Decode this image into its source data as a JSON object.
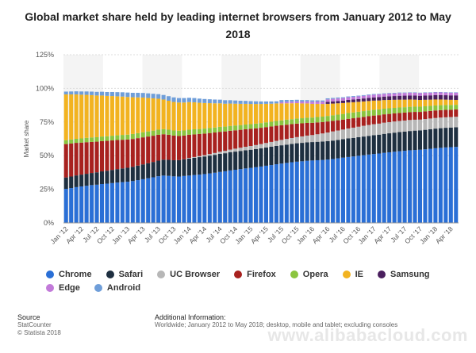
{
  "chart_data": {
    "type": "bar",
    "stacked": true,
    "title": "Global market share held by leading internet browsers from January 2012 to May 2018",
    "ylabel": "Market share",
    "xlabel": "",
    "ylim": [
      0,
      125
    ],
    "yticks": [
      "0%",
      "25%",
      "50%",
      "75%",
      "100%",
      "125%"
    ],
    "grid": true,
    "legend_position": "bottom",
    "x_tick_labels": [
      "Jan '12",
      "Apr '12",
      "Jul '12",
      "Oct '12",
      "Jan '13",
      "Apr '13",
      "Jul '13",
      "Oct '13",
      "Jan '14",
      "Apr '14",
      "Jul '14",
      "Oct '14",
      "Jan '15",
      "Apr '15",
      "Jul '15",
      "Oct '15",
      "Jan '16",
      "Apr '16",
      "Jul '16",
      "Oct '16",
      "Jan '17",
      "Apr '17",
      "Jul '17",
      "Oct '17",
      "Jan '18",
      "Apr '18"
    ],
    "categories": [
      "Jan '12",
      "Feb '12",
      "Mar '12",
      "Apr '12",
      "May '12",
      "Jun '12",
      "Jul '12",
      "Aug '12",
      "Sep '12",
      "Oct '12",
      "Nov '12",
      "Dec '12",
      "Jan '13",
      "Feb '13",
      "Mar '13",
      "Apr '13",
      "May '13",
      "Jun '13",
      "Jul '13",
      "Aug '13",
      "Sep '13",
      "Oct '13",
      "Nov '13",
      "Dec '13",
      "Jan '14",
      "Feb '14",
      "Mar '14",
      "Apr '14",
      "May '14",
      "Jun '14",
      "Jul '14",
      "Aug '14",
      "Sep '14",
      "Oct '14",
      "Nov '14",
      "Dec '14",
      "Jan '15",
      "Feb '15",
      "Mar '15",
      "Apr '15",
      "May '15",
      "Jun '15",
      "Jul '15",
      "Aug '15",
      "Sep '15",
      "Oct '15",
      "Nov '15",
      "Dec '15",
      "Jan '16",
      "Feb '16",
      "Mar '16",
      "Apr '16",
      "May '16",
      "Jun '16",
      "Jul '16",
      "Aug '16",
      "Sep '16",
      "Oct '16",
      "Nov '16",
      "Dec '16",
      "Jan '17",
      "Feb '17",
      "Mar '17",
      "Apr '17",
      "May '17",
      "Jun '17",
      "Jul '17",
      "Aug '17",
      "Sep '17",
      "Oct '17",
      "Nov '17",
      "Dec '17",
      "Jan '18",
      "Feb '18",
      "Mar '18",
      "Apr '18",
      "May '18"
    ],
    "series": [
      {
        "name": "Chrome",
        "color": "#2a6fd6",
        "values": [
          25.3,
          25.9,
          26.6,
          27.1,
          27.6,
          28.1,
          28.4,
          28.9,
          29.2,
          29.6,
          30.0,
          30.3,
          30.6,
          31.1,
          31.8,
          32.5,
          33.2,
          33.9,
          34.7,
          35.2,
          35.0,
          34.6,
          34.5,
          34.9,
          35.2,
          35.6,
          35.9,
          36.3,
          36.8,
          37.3,
          37.9,
          38.4,
          39.0,
          39.5,
          40.0,
          40.5,
          40.9,
          41.4,
          41.9,
          42.5,
          43.0,
          43.6,
          44.1,
          44.6,
          45.1,
          45.5,
          45.8,
          46.2,
          46.4,
          46.6,
          46.8,
          47.1,
          47.5,
          48.0,
          48.5,
          49.0,
          49.4,
          49.9,
          50.3,
          50.8,
          51.2,
          51.6,
          52.1,
          52.5,
          52.9,
          53.3,
          53.6,
          54.0,
          54.2,
          54.4,
          54.7,
          55.1,
          55.5,
          55.8,
          56.1,
          56.3,
          56.5
        ]
      },
      {
        "name": "Safari",
        "color": "#1e2f40",
        "values": [
          8.5,
          8.6,
          8.7,
          8.8,
          8.9,
          9.0,
          9.2,
          9.4,
          9.6,
          9.8,
          10.0,
          10.2,
          10.4,
          10.6,
          10.8,
          11.0,
          11.2,
          11.4,
          11.6,
          11.8,
          11.9,
          12.0,
          12.2,
          12.4,
          12.6,
          12.8,
          13.0,
          13.1,
          13.2,
          13.3,
          13.4,
          13.4,
          13.5,
          13.5,
          13.5,
          13.5,
          13.5,
          13.5,
          13.5,
          13.5,
          13.6,
          13.6,
          13.6,
          13.6,
          13.6,
          13.7,
          13.7,
          13.7,
          13.7,
          13.7,
          13.7,
          13.7,
          13.7,
          13.7,
          13.7,
          13.8,
          13.8,
          13.8,
          13.9,
          13.9,
          14.0,
          14.0,
          14.1,
          14.1,
          14.2,
          14.2,
          14.3,
          14.3,
          14.4,
          14.4,
          14.5,
          14.5,
          14.6,
          14.6,
          14.6,
          14.6,
          14.6
        ]
      },
      {
        "name": "UC Browser",
        "color": "#b7b7b7",
        "values": [
          0,
          0,
          0,
          0,
          0,
          0,
          0,
          0,
          0,
          0,
          0,
          0,
          0,
          0,
          0,
          0,
          0,
          0,
          0,
          0,
          0,
          0,
          0,
          0,
          0.5,
          0.6,
          0.8,
          1.0,
          1.2,
          1.4,
          1.6,
          1.8,
          2.0,
          2.2,
          2.4,
          2.6,
          2.8,
          3.0,
          3.2,
          3.4,
          3.6,
          3.8,
          4.0,
          4.2,
          4.4,
          4.6,
          4.8,
          5.0,
          5.2,
          5.6,
          6.0,
          6.4,
          6.8,
          7.0,
          7.2,
          7.4,
          7.6,
          7.8,
          8.0,
          8.1,
          8.2,
          8.2,
          8.3,
          8.3,
          8.3,
          8.3,
          8.2,
          8.2,
          8.1,
          8.0,
          8.0,
          8.0,
          7.9,
          7.9,
          7.8,
          7.8,
          7.8
        ]
      },
      {
        "name": "Firefox",
        "color": "#a8211f",
        "values": [
          24.8,
          24.5,
          24.2,
          23.8,
          23.5,
          23.1,
          22.8,
          22.5,
          22.2,
          21.9,
          21.6,
          21.3,
          21.0,
          20.7,
          20.4,
          20.1,
          19.8,
          19.5,
          19.2,
          18.9,
          18.6,
          18.3,
          18.0,
          17.6,
          17.2,
          16.8,
          16.4,
          16.0,
          15.6,
          15.2,
          14.8,
          14.4,
          14.0,
          13.6,
          13.3,
          13.0,
          12.7,
          12.4,
          12.1,
          11.8,
          11.5,
          11.2,
          10.9,
          10.6,
          10.3,
          10.0,
          9.7,
          9.4,
          9.1,
          8.8,
          8.5,
          8.2,
          7.9,
          7.6,
          7.4,
          7.2,
          7.0,
          6.8,
          6.6,
          6.5,
          6.4,
          6.3,
          6.2,
          6.1,
          6.0,
          5.9,
          5.9,
          5.8,
          5.8,
          5.7,
          5.7,
          5.6,
          5.6,
          5.5,
          5.5,
          5.4,
          5.4
        ]
      },
      {
        "name": "Opera",
        "color": "#8bc53f",
        "values": [
          2.9,
          3.0,
          3.0,
          3.1,
          3.2,
          3.3,
          3.3,
          3.4,
          3.4,
          3.5,
          3.5,
          3.6,
          3.6,
          3.7,
          3.7,
          3.8,
          3.8,
          3.8,
          3.8,
          3.8,
          3.8,
          3.8,
          3.8,
          3.8,
          3.8,
          3.8,
          3.7,
          3.7,
          3.7,
          3.7,
          3.7,
          3.6,
          3.6,
          3.6,
          3.5,
          3.5,
          3.5,
          3.5,
          3.5,
          3.5,
          3.5,
          3.6,
          3.6,
          3.7,
          3.7,
          3.8,
          3.8,
          3.9,
          3.9,
          4.0,
          4.0,
          4.1,
          4.1,
          4.2,
          4.2,
          4.3,
          4.3,
          4.3,
          4.3,
          4.3,
          4.3,
          4.3,
          4.2,
          4.2,
          4.1,
          4.1,
          4.0,
          4.0,
          3.9,
          3.9,
          3.8,
          3.8,
          3.7,
          3.7,
          3.6,
          3.6,
          3.5
        ]
      },
      {
        "name": "IE",
        "color": "#f2b320",
        "values": [
          34.0,
          33.5,
          33.0,
          32.5,
          32.0,
          31.5,
          31.0,
          30.5,
          30.0,
          29.5,
          29.0,
          28.5,
          28.0,
          27.3,
          26.6,
          25.8,
          24.9,
          24.0,
          23.0,
          22.0,
          21.5,
          21.2,
          21.0,
          20.8,
          20.5,
          20.0,
          19.5,
          19.0,
          18.5,
          18.0,
          17.5,
          17.0,
          16.6,
          16.2,
          15.8,
          15.4,
          15.0,
          14.6,
          14.2,
          13.8,
          13.4,
          13.0,
          12.6,
          12.2,
          11.8,
          11.4,
          11.0,
          10.6,
          10.2,
          9.8,
          9.4,
          9.0,
          8.7,
          8.4,
          8.1,
          7.8,
          7.6,
          7.4,
          7.2,
          7.0,
          6.8,
          6.6,
          6.4,
          6.2,
          6.0,
          5.8,
          5.6,
          5.4,
          5.2,
          5.0,
          4.8,
          4.6,
          4.4,
          4.2,
          4.0,
          3.8,
          3.6
        ]
      },
      {
        "name": "Samsung",
        "color": "#4a1f5e",
        "values": [
          0,
          0,
          0,
          0,
          0,
          0,
          0,
          0,
          0,
          0,
          0,
          0,
          0,
          0,
          0,
          0,
          0,
          0,
          0,
          0,
          0,
          0,
          0,
          0,
          0,
          0,
          0,
          0,
          0,
          0,
          0,
          0,
          0,
          0,
          0,
          0,
          0,
          0,
          0,
          0,
          0,
          0,
          0,
          0,
          0,
          0,
          0,
          0,
          0,
          0,
          0,
          1.5,
          1.6,
          1.7,
          1.8,
          1.9,
          2.0,
          2.1,
          2.2,
          2.3,
          2.4,
          2.5,
          2.6,
          2.7,
          2.8,
          2.9,
          3.0,
          3.0,
          3.1,
          3.1,
          3.2,
          3.2,
          3.3,
          3.3,
          3.3,
          3.3,
          3.4
        ]
      },
      {
        "name": "Edge",
        "color": "#c27ad9",
        "values": [
          0,
          0,
          0,
          0,
          0,
          0,
          0,
          0,
          0,
          0,
          0,
          0,
          0,
          0,
          0,
          0,
          0,
          0,
          0,
          0,
          0,
          0,
          0,
          0,
          0,
          0,
          0,
          0,
          0,
          0,
          0,
          0,
          0,
          0,
          0,
          0,
          0,
          0,
          0,
          0,
          0,
          0,
          1.0,
          1.1,
          1.2,
          1.3,
          1.4,
          1.5,
          1.6,
          1.7,
          1.8,
          1.8,
          1.9,
          1.9,
          1.9,
          2.0,
          2.0,
          2.0,
          2.0,
          2.0,
          2.0,
          2.0,
          2.0,
          2.0,
          2.0,
          2.0,
          2.0,
          2.0,
          2.0,
          2.0,
          2.0,
          2.0,
          2.0,
          2.0,
          2.0,
          2.0,
          2.0
        ]
      },
      {
        "name": "Android",
        "color": "#6f9ed9",
        "values": [
          2.1,
          2.2,
          2.3,
          2.4,
          2.5,
          2.6,
          2.7,
          2.8,
          2.9,
          3.0,
          3.1,
          3.2,
          3.3,
          3.3,
          3.4,
          3.4,
          3.4,
          3.4,
          3.4,
          3.4,
          3.4,
          3.4,
          3.3,
          3.3,
          3.2,
          3.2,
          3.1,
          3.0,
          2.9,
          2.8,
          2.7,
          2.6,
          2.5,
          2.4,
          2.3,
          2.2,
          2.1,
          2.0,
          1.9,
          1.8,
          1.7,
          1.6,
          1.5,
          1.4,
          1.3,
          1.2,
          1.1,
          1.0,
          1.0,
          0.9,
          0.8,
          0.8,
          0.7,
          0.7,
          0.6,
          0.6,
          0.6,
          0.5,
          0.5,
          0.5,
          0.5,
          0.4,
          0.4,
          0.4,
          0.4,
          0.4,
          0.3,
          0.3,
          0.3,
          0.3,
          0.3,
          0.3,
          0.3,
          0.3,
          0.3,
          0.3,
          0.3
        ]
      }
    ]
  },
  "footer": {
    "source_heading": "Source",
    "source_line1": "StatCounter",
    "source_line2": "© Statista 2018",
    "info_heading": "Additional Information:",
    "info_text": "Worldwide; January 2012 to May 2018; desktop, mobile and tablet; excluding consoles"
  },
  "watermark": "www.alibabacloud.com"
}
